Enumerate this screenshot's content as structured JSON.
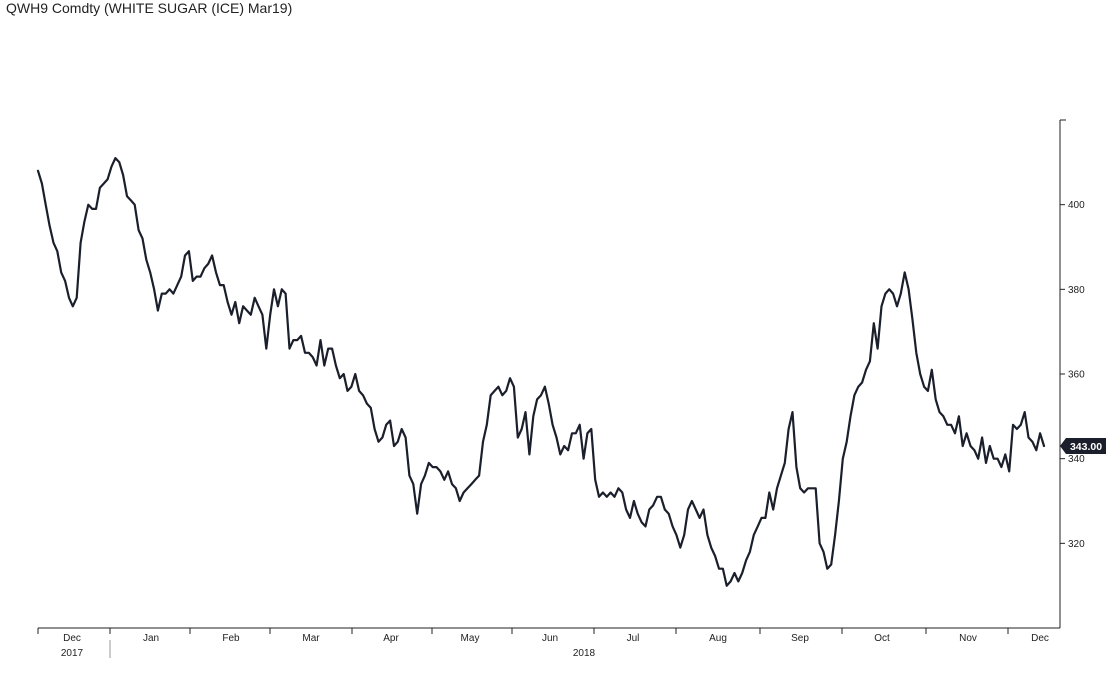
{
  "title": "QWH9 Comdty (WHITE SUGAR (ICE) Mar19)",
  "chart_data": {
    "type": "line",
    "title": "QWH9 Comdty (WHITE SUGAR (ICE) Mar19)",
    "xlabel": "",
    "ylabel": "",
    "ylim": [
      300,
      420
    ],
    "y_ticks": [
      320,
      340,
      360,
      380,
      400
    ],
    "y_tick_labels": [
      "320",
      "340",
      "360",
      "380",
      "400"
    ],
    "y_axis_position": "right",
    "x_month_labels": [
      "Dec",
      "Jan",
      "Feb",
      "Mar",
      "Apr",
      "May",
      "Jun",
      "Jul",
      "Aug",
      "Sep",
      "Oct",
      "Nov",
      "Dec"
    ],
    "x_year_labels": [
      "2017",
      "2018"
    ],
    "last_value_label": "343.00",
    "last_value_color": "#1a1f2b",
    "line_color": "#1a1f2b",
    "grid": false,
    "series": [
      {
        "values": [
          [
            0,
            408
          ],
          [
            2,
            405
          ],
          [
            4,
            400
          ],
          [
            6,
            395
          ],
          [
            8,
            391
          ],
          [
            10,
            389
          ],
          [
            12,
            384
          ],
          [
            14,
            382
          ],
          [
            16,
            378
          ],
          [
            18,
            376
          ],
          [
            20,
            378
          ],
          [
            22,
            391
          ],
          [
            24,
            396
          ],
          [
            26,
            400
          ],
          [
            28,
            399
          ],
          [
            30,
            399
          ],
          [
            32,
            404
          ],
          [
            34,
            405
          ],
          [
            36,
            406
          ],
          [
            38,
            409
          ],
          [
            40,
            411
          ],
          [
            42,
            410
          ],
          [
            44,
            407
          ],
          [
            46,
            402
          ],
          [
            48,
            401
          ],
          [
            50,
            400
          ],
          [
            52,
            394
          ],
          [
            54,
            392
          ],
          [
            56,
            387
          ],
          [
            58,
            384
          ],
          [
            60,
            380
          ],
          [
            62,
            375
          ],
          [
            64,
            379
          ],
          [
            66,
            379
          ],
          [
            68,
            380
          ],
          [
            70,
            379
          ],
          [
            72,
            381
          ],
          [
            74,
            383
          ],
          [
            76,
            388
          ],
          [
            78,
            389
          ],
          [
            80,
            382
          ],
          [
            82,
            383
          ],
          [
            84,
            383
          ],
          [
            86,
            385
          ],
          [
            88,
            386
          ],
          [
            90,
            388
          ],
          [
            92,
            384
          ],
          [
            94,
            381
          ],
          [
            96,
            381
          ],
          [
            98,
            377
          ],
          [
            100,
            374
          ],
          [
            102,
            377
          ],
          [
            104,
            372
          ],
          [
            106,
            376
          ],
          [
            108,
            375
          ],
          [
            110,
            374
          ],
          [
            112,
            378
          ],
          [
            114,
            376
          ],
          [
            116,
            374
          ],
          [
            118,
            366
          ],
          [
            120,
            374
          ],
          [
            122,
            380
          ],
          [
            124,
            376
          ],
          [
            126,
            380
          ],
          [
            128,
            379
          ],
          [
            130,
            366
          ],
          [
            132,
            368
          ],
          [
            134,
            368
          ],
          [
            136,
            369
          ],
          [
            138,
            365
          ],
          [
            140,
            365
          ],
          [
            142,
            364
          ],
          [
            144,
            362
          ],
          [
            146,
            368
          ],
          [
            148,
            362
          ],
          [
            150,
            366
          ],
          [
            152,
            366
          ],
          [
            154,
            362
          ],
          [
            156,
            359
          ],
          [
            158,
            360
          ],
          [
            160,
            356
          ],
          [
            162,
            357
          ],
          [
            164,
            360
          ],
          [
            166,
            356
          ],
          [
            168,
            355
          ],
          [
            170,
            353
          ],
          [
            172,
            352
          ],
          [
            174,
            347
          ],
          [
            176,
            344
          ],
          [
            178,
            345
          ],
          [
            180,
            348
          ],
          [
            182,
            349
          ],
          [
            184,
            343
          ],
          [
            186,
            344
          ],
          [
            188,
            347
          ],
          [
            190,
            345
          ],
          [
            192,
            336
          ],
          [
            194,
            334
          ],
          [
            196,
            327
          ],
          [
            198,
            334
          ],
          [
            200,
            336
          ],
          [
            202,
            339
          ],
          [
            204,
            338
          ],
          [
            206,
            338
          ],
          [
            208,
            337
          ],
          [
            210,
            335
          ],
          [
            212,
            337
          ],
          [
            214,
            334
          ],
          [
            216,
            333
          ],
          [
            218,
            330
          ],
          [
            220,
            332
          ],
          [
            222,
            333
          ],
          [
            224,
            334
          ],
          [
            226,
            335
          ],
          [
            228,
            336
          ],
          [
            230,
            344
          ],
          [
            232,
            348
          ],
          [
            234,
            355
          ],
          [
            236,
            356
          ],
          [
            238,
            357
          ],
          [
            240,
            355
          ],
          [
            242,
            356
          ],
          [
            244,
            359
          ],
          [
            246,
            357
          ],
          [
            248,
            345
          ],
          [
            250,
            347
          ],
          [
            252,
            351
          ],
          [
            254,
            341
          ],
          [
            256,
            350
          ],
          [
            258,
            354
          ],
          [
            260,
            355
          ],
          [
            262,
            357
          ],
          [
            264,
            353
          ],
          [
            266,
            348
          ],
          [
            268,
            345
          ],
          [
            270,
            341
          ],
          [
            272,
            343
          ],
          [
            274,
            342
          ],
          [
            276,
            346
          ],
          [
            278,
            346
          ],
          [
            280,
            348
          ],
          [
            282,
            340
          ],
          [
            284,
            346
          ],
          [
            286,
            347
          ],
          [
            288,
            335
          ],
          [
            290,
            331
          ],
          [
            292,
            332
          ],
          [
            294,
            331
          ],
          [
            296,
            332
          ],
          [
            298,
            331
          ],
          [
            300,
            333
          ],
          [
            302,
            332
          ],
          [
            304,
            328
          ],
          [
            306,
            326
          ],
          [
            308,
            330
          ],
          [
            310,
            327
          ],
          [
            312,
            325
          ],
          [
            314,
            324
          ],
          [
            316,
            328
          ],
          [
            318,
            329
          ],
          [
            320,
            331
          ],
          [
            322,
            331
          ],
          [
            324,
            328
          ],
          [
            326,
            327
          ],
          [
            328,
            324
          ],
          [
            330,
            322
          ],
          [
            332,
            319
          ],
          [
            334,
            322
          ],
          [
            336,
            328
          ],
          [
            338,
            330
          ],
          [
            340,
            328
          ],
          [
            342,
            326
          ],
          [
            344,
            328
          ],
          [
            346,
            322
          ],
          [
            348,
            319
          ],
          [
            350,
            317
          ],
          [
            352,
            314
          ],
          [
            354,
            314
          ],
          [
            356,
            310
          ],
          [
            358,
            311
          ],
          [
            360,
            313
          ],
          [
            362,
            311
          ],
          [
            364,
            313
          ],
          [
            366,
            316
          ],
          [
            368,
            318
          ],
          [
            370,
            322
          ],
          [
            372,
            324
          ],
          [
            374,
            326
          ],
          [
            376,
            326
          ],
          [
            378,
            332
          ],
          [
            380,
            328
          ],
          [
            382,
            333
          ],
          [
            384,
            336
          ],
          [
            386,
            339
          ],
          [
            388,
            347
          ],
          [
            390,
            351
          ],
          [
            392,
            338
          ],
          [
            394,
            333
          ],
          [
            396,
            332
          ],
          [
            398,
            333
          ],
          [
            400,
            333
          ],
          [
            402,
            333
          ],
          [
            404,
            320
          ],
          [
            406,
            318
          ],
          [
            408,
            314
          ],
          [
            410,
            315
          ],
          [
            412,
            322
          ],
          [
            414,
            330
          ],
          [
            416,
            340
          ],
          [
            418,
            344
          ],
          [
            420,
            350
          ],
          [
            422,
            355
          ],
          [
            424,
            357
          ],
          [
            426,
            358
          ],
          [
            428,
            361
          ],
          [
            430,
            363
          ],
          [
            432,
            372
          ],
          [
            434,
            366
          ],
          [
            436,
            376
          ],
          [
            438,
            379
          ],
          [
            440,
            380
          ],
          [
            442,
            379
          ],
          [
            444,
            376
          ],
          [
            446,
            379
          ],
          [
            448,
            384
          ],
          [
            450,
            380
          ],
          [
            452,
            373
          ],
          [
            454,
            365
          ],
          [
            456,
            360
          ],
          [
            458,
            357
          ],
          [
            460,
            356
          ],
          [
            462,
            361
          ],
          [
            464,
            354
          ],
          [
            466,
            351
          ],
          [
            468,
            350
          ],
          [
            470,
            348
          ],
          [
            472,
            348
          ],
          [
            474,
            346
          ],
          [
            476,
            350
          ],
          [
            478,
            343
          ],
          [
            480,
            346
          ],
          [
            482,
            343
          ],
          [
            484,
            342
          ],
          [
            486,
            340
          ],
          [
            488,
            345
          ],
          [
            490,
            339
          ],
          [
            492,
            343
          ],
          [
            494,
            340
          ],
          [
            496,
            340
          ],
          [
            498,
            338
          ],
          [
            500,
            341
          ],
          [
            502,
            337
          ],
          [
            504,
            348
          ],
          [
            506,
            347
          ],
          [
            508,
            348
          ],
          [
            510,
            351
          ],
          [
            512,
            345
          ],
          [
            514,
            344
          ],
          [
            516,
            342
          ],
          [
            518,
            346
          ],
          [
            520,
            343
          ]
        ]
      }
    ]
  }
}
